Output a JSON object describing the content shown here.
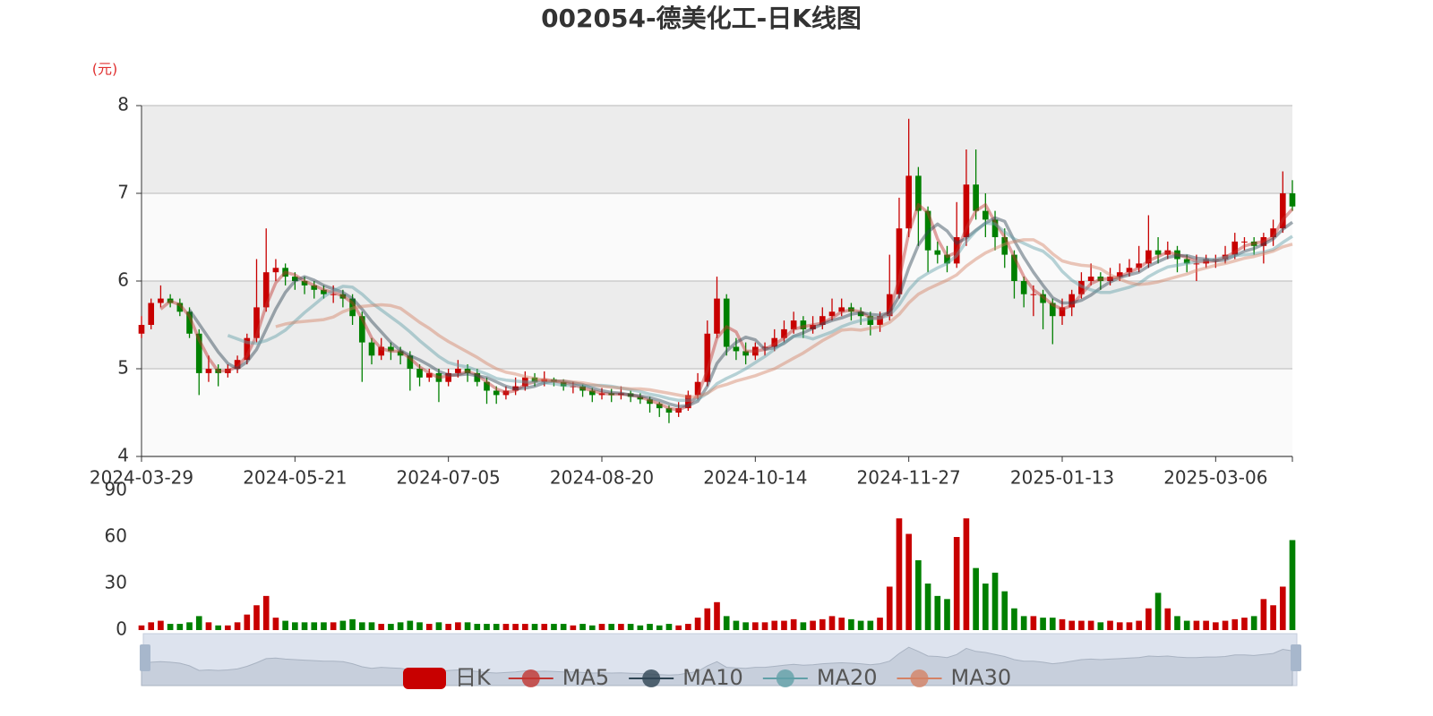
{
  "chart_data": [
    {
      "type": "candlestick",
      "title": "002054-德美化工-日K线图",
      "y_unit": "(元)",
      "candle_name": "日K",
      "up_color": "#c80000",
      "down_color": "#008000",
      "grid": true,
      "legend_position": "bottom",
      "categories": [
        "2024-03-29",
        null,
        null,
        null,
        null,
        null,
        null,
        null,
        null,
        null,
        null,
        null,
        null,
        null,
        null,
        null,
        "2024-05-21",
        null,
        null,
        null,
        null,
        null,
        null,
        null,
        null,
        null,
        null,
        null,
        null,
        null,
        null,
        null,
        "2024-07-05",
        null,
        null,
        null,
        null,
        null,
        null,
        null,
        null,
        null,
        null,
        null,
        null,
        null,
        null,
        null,
        "2024-08-20",
        null,
        null,
        null,
        null,
        null,
        null,
        null,
        null,
        null,
        null,
        null,
        null,
        null,
        null,
        null,
        "2024-10-14",
        null,
        null,
        null,
        null,
        null,
        null,
        null,
        null,
        null,
        null,
        null,
        null,
        null,
        null,
        null,
        "2024-11-27",
        null,
        null,
        null,
        null,
        null,
        null,
        null,
        null,
        null,
        null,
        null,
        null,
        null,
        null,
        null,
        "2025-01-13",
        null,
        null,
        null,
        null,
        null,
        null,
        null,
        null,
        null,
        null,
        null,
        null,
        null,
        null,
        null,
        "2025-03-06",
        null,
        null,
        null,
        null,
        null,
        null,
        null,
        null
      ],
      "open": [
        5.4,
        5.5,
        5.75,
        5.8,
        5.75,
        5.65,
        5.4,
        4.95,
        5.0,
        4.95,
        5.0,
        5.1,
        5.35,
        5.7,
        6.1,
        6.15,
        6.05,
        6.0,
        5.95,
        5.9,
        5.85,
        5.85,
        5.8,
        5.6,
        5.3,
        5.15,
        5.25,
        5.2,
        5.15,
        5.0,
        4.9,
        4.95,
        4.85,
        4.95,
        5.0,
        4.95,
        4.85,
        4.75,
        4.7,
        4.75,
        4.8,
        4.9,
        4.85,
        4.88,
        4.85,
        4.8,
        4.8,
        4.75,
        4.7,
        4.72,
        4.7,
        4.72,
        4.68,
        4.65,
        4.6,
        4.55,
        4.5,
        4.55,
        4.7,
        4.85,
        5.4,
        5.8,
        5.25,
        5.2,
        5.15,
        5.25,
        5.25,
        5.35,
        5.45,
        5.55,
        5.45,
        5.5,
        5.6,
        5.65,
        5.7,
        5.65,
        5.6,
        5.5,
        5.6,
        5.85,
        6.6,
        7.2,
        6.8,
        6.35,
        6.3,
        6.2,
        6.5,
        7.1,
        6.8,
        6.7,
        6.5,
        6.3,
        6.0,
        5.85,
        5.85,
        5.75,
        5.6,
        5.7,
        5.85,
        6.0,
        6.05,
        6.0,
        6.05,
        6.1,
        6.15,
        6.2,
        6.35,
        6.3,
        6.35,
        6.25,
        6.2,
        6.2,
        6.25,
        6.25,
        6.3,
        6.45,
        6.45,
        6.4,
        6.5,
        6.6,
        7.0
      ],
      "close": [
        5.5,
        5.75,
        5.8,
        5.75,
        5.65,
        5.4,
        4.95,
        5.0,
        4.95,
        5.0,
        5.1,
        5.35,
        5.7,
        6.1,
        6.15,
        6.05,
        6.0,
        5.95,
        5.9,
        5.85,
        5.85,
        5.8,
        5.6,
        5.3,
        5.15,
        5.25,
        5.2,
        5.15,
        5.0,
        4.9,
        4.95,
        4.85,
        4.95,
        5.0,
        4.95,
        4.85,
        4.75,
        4.7,
        4.75,
        4.8,
        4.9,
        4.85,
        4.88,
        4.85,
        4.8,
        4.8,
        4.75,
        4.7,
        4.72,
        4.7,
        4.72,
        4.68,
        4.65,
        4.6,
        4.55,
        4.5,
        4.55,
        4.7,
        4.85,
        5.4,
        5.8,
        5.25,
        5.2,
        5.15,
        5.25,
        5.25,
        5.35,
        5.45,
        5.55,
        5.45,
        5.5,
        5.6,
        5.65,
        5.7,
        5.65,
        5.6,
        5.5,
        5.6,
        5.85,
        6.6,
        7.2,
        6.8,
        6.35,
        6.3,
        6.2,
        6.5,
        7.1,
        6.8,
        6.7,
        6.5,
        6.3,
        6.0,
        5.85,
        5.85,
        5.75,
        5.6,
        5.7,
        5.85,
        6.0,
        6.05,
        6.0,
        6.05,
        6.1,
        6.15,
        6.2,
        6.35,
        6.3,
        6.35,
        6.25,
        6.2,
        6.2,
        6.25,
        6.25,
        6.3,
        6.45,
        6.45,
        6.4,
        6.5,
        6.6,
        7.0,
        6.85
      ],
      "low": [
        5.35,
        5.45,
        5.7,
        5.7,
        5.6,
        5.35,
        4.7,
        4.85,
        4.8,
        4.9,
        4.95,
        5.05,
        5.3,
        5.65,
        6.0,
        5.95,
        5.9,
        5.85,
        5.8,
        5.8,
        5.75,
        5.7,
        5.5,
        4.85,
        5.05,
        5.1,
        5.1,
        5.05,
        4.75,
        4.8,
        4.85,
        4.62,
        4.8,
        4.9,
        4.85,
        4.8,
        4.6,
        4.6,
        4.65,
        4.7,
        4.75,
        4.8,
        4.8,
        4.8,
        4.75,
        4.72,
        4.68,
        4.62,
        4.65,
        4.62,
        4.65,
        4.62,
        4.6,
        4.5,
        4.45,
        4.38,
        4.45,
        4.52,
        4.65,
        4.8,
        5.35,
        5.15,
        5.1,
        5.05,
        5.1,
        5.15,
        5.2,
        5.3,
        5.4,
        5.35,
        5.4,
        5.45,
        5.55,
        5.6,
        5.55,
        5.5,
        5.38,
        5.42,
        5.55,
        5.8,
        6.5,
        6.4,
        6.1,
        6.2,
        6.1,
        6.15,
        6.4,
        6.7,
        6.5,
        6.35,
        6.15,
        5.8,
        5.7,
        5.6,
        5.45,
        5.28,
        5.5,
        5.6,
        5.8,
        5.95,
        5.9,
        5.95,
        6.0,
        6.05,
        6.1,
        6.15,
        6.2,
        6.25,
        6.1,
        6.1,
        6.0,
        6.15,
        6.15,
        6.2,
        6.25,
        6.35,
        6.3,
        6.2,
        6.4,
        6.55,
        6.8
      ],
      "high": [
        5.6,
        5.8,
        5.95,
        5.85,
        5.8,
        5.7,
        5.45,
        5.15,
        5.05,
        5.05,
        5.15,
        5.4,
        6.25,
        6.6,
        6.25,
        6.2,
        6.1,
        6.05,
        6.0,
        5.95,
        5.95,
        5.9,
        5.85,
        5.65,
        5.35,
        5.35,
        5.3,
        5.25,
        5.2,
        5.05,
        5.0,
        5.0,
        5.0,
        5.1,
        5.05,
        5.0,
        4.9,
        4.8,
        4.8,
        4.9,
        4.97,
        4.95,
        4.97,
        4.9,
        4.88,
        4.85,
        4.82,
        4.78,
        4.78,
        4.77,
        4.8,
        4.75,
        4.72,
        4.68,
        4.62,
        4.58,
        4.62,
        4.75,
        4.95,
        5.55,
        6.05,
        5.85,
        5.35,
        5.3,
        5.3,
        5.3,
        5.45,
        5.55,
        5.65,
        5.6,
        5.6,
        5.7,
        5.8,
        5.8,
        5.75,
        5.7,
        5.65,
        5.65,
        6.3,
        6.95,
        7.85,
        7.3,
        6.85,
        6.45,
        6.4,
        6.9,
        7.5,
        7.5,
        7.0,
        6.8,
        6.6,
        6.35,
        6.05,
        5.95,
        5.9,
        5.8,
        5.8,
        5.9,
        6.1,
        6.2,
        6.1,
        6.15,
        6.2,
        6.25,
        6.4,
        6.75,
        6.5,
        6.45,
        6.4,
        6.3,
        6.3,
        6.3,
        6.3,
        6.4,
        6.55,
        6.5,
        6.5,
        6.55,
        6.7,
        7.25,
        7.15
      ],
      "series": [
        {
          "name": "MA5",
          "color": "#c23531",
          "values": [
            null,
            null,
            5.68,
            5.77,
            5.73,
            5.6,
            5.33,
            5.12,
            4.97,
            4.98,
            5.02,
            5.15,
            5.38,
            5.72,
            5.98,
            6.1,
            6.07,
            6.0,
            5.95,
            5.9,
            5.87,
            5.83,
            5.75,
            5.57,
            5.35,
            5.23,
            5.2,
            5.2,
            5.12,
            5.02,
            4.95,
            4.9,
            4.92,
            4.93,
            4.97,
            4.93,
            4.85,
            4.77,
            4.73,
            4.75,
            4.82,
            4.85,
            4.88,
            4.86,
            4.84,
            4.82,
            4.78,
            4.75,
            4.72,
            4.71,
            4.71,
            4.7,
            4.68,
            4.64,
            4.6,
            4.55,
            4.53,
            4.58,
            4.7,
            4.98,
            5.35,
            5.48,
            5.42,
            5.2,
            5.2,
            5.22,
            5.28,
            5.35,
            5.45,
            5.48,
            5.5,
            5.52,
            5.58,
            5.65,
            5.67,
            5.65,
            5.58,
            5.57,
            5.65,
            6.02,
            6.55,
            6.87,
            6.78,
            6.48,
            6.28,
            6.33,
            6.6,
            6.8,
            6.87,
            6.67,
            6.5,
            6.27,
            6.05,
            5.9,
            5.82,
            5.73,
            5.68,
            5.72,
            5.85,
            5.97,
            6.02,
            6.03,
            6.05,
            6.1,
            6.15,
            6.23,
            6.28,
            6.33,
            6.3,
            6.27,
            6.22,
            6.22,
            6.23,
            6.27,
            6.33,
            6.4,
            6.43,
            6.45,
            6.5,
            6.7,
            6.82
          ]
        },
        {
          "name": "MA10",
          "color": "#2f4554",
          "values": [
            null,
            null,
            null,
            null,
            null,
            5.67,
            5.51,
            5.35,
            5.19,
            5.06,
            5.0,
            5.08,
            5.22,
            5.45,
            5.68,
            5.87,
            6.0,
            6.05,
            6.01,
            5.95,
            5.91,
            5.87,
            5.8,
            5.68,
            5.54,
            5.42,
            5.3,
            5.21,
            5.15,
            5.1,
            5.04,
            4.97,
            4.93,
            4.93,
            4.94,
            4.92,
            4.9,
            4.85,
            4.8,
            4.77,
            4.78,
            4.8,
            4.84,
            4.86,
            4.86,
            4.84,
            4.82,
            4.78,
            4.75,
            4.73,
            4.72,
            4.7,
            4.69,
            4.67,
            4.64,
            4.6,
            4.57,
            4.58,
            4.63,
            4.8,
            5.06,
            5.2,
            5.3,
            5.36,
            5.33,
            5.22,
            5.24,
            5.29,
            5.37,
            5.41,
            5.46,
            5.51,
            5.55,
            5.58,
            5.62,
            5.64,
            5.62,
            5.61,
            5.64,
            5.83,
            6.15,
            6.41,
            6.56,
            6.65,
            6.57,
            6.43,
            6.49,
            6.58,
            6.66,
            6.72,
            6.68,
            6.46,
            6.27,
            6.1,
            5.95,
            5.81,
            5.75,
            5.75,
            5.78,
            5.84,
            5.92,
            5.99,
            6.04,
            6.07,
            6.1,
            6.17,
            6.22,
            6.27,
            6.29,
            6.29,
            6.26,
            6.25,
            6.23,
            6.24,
            6.29,
            6.34,
            6.37,
            6.42,
            6.48,
            6.59,
            6.67
          ]
        },
        {
          "name": "MA20",
          "color": "#61a0a8",
          "values": [
            null,
            null,
            null,
            null,
            null,
            null,
            null,
            null,
            null,
            5.38,
            5.34,
            5.3,
            5.29,
            5.32,
            5.37,
            5.44,
            5.54,
            5.64,
            5.73,
            5.82,
            5.89,
            5.94,
            5.93,
            5.85,
            5.75,
            5.67,
            5.59,
            5.51,
            5.42,
            5.32,
            5.23,
            5.14,
            5.07,
            5.04,
            5.02,
            4.98,
            4.94,
            4.89,
            4.87,
            4.86,
            4.85,
            4.85,
            4.84,
            4.83,
            4.81,
            4.81,
            4.81,
            4.81,
            4.81,
            4.8,
            4.78,
            4.76,
            4.74,
            4.71,
            4.69,
            4.66,
            4.64,
            4.64,
            4.65,
            4.72,
            4.83,
            4.89,
            4.94,
            5.0,
            5.07,
            5.14,
            5.22,
            5.3,
            5.37,
            5.37,
            5.34,
            5.38,
            5.42,
            5.48,
            5.52,
            5.55,
            5.57,
            5.58,
            5.61,
            5.73,
            5.9,
            6.02,
            6.09,
            6.15,
            6.2,
            6.29,
            6.45,
            6.57,
            6.66,
            6.65,
            6.56,
            6.48,
            6.43,
            6.38,
            6.34,
            6.25,
            6.11,
            6.01,
            5.94,
            5.9,
            5.87,
            5.87,
            5.9,
            5.93,
            5.97,
            6.05,
            6.11,
            6.16,
            6.18,
            6.2,
            6.22,
            6.24,
            6.25,
            6.27,
            6.29,
            6.3,
            6.31,
            6.33,
            6.36,
            6.44,
            6.51
          ]
        },
        {
          "name": "MA30",
          "color": "#d48265",
          "values": [
            null,
            null,
            null,
            null,
            null,
            null,
            null,
            null,
            null,
            null,
            null,
            null,
            null,
            null,
            5.48,
            5.51,
            5.53,
            5.54,
            5.55,
            5.56,
            5.59,
            5.65,
            5.69,
            5.71,
            5.72,
            5.73,
            5.72,
            5.69,
            5.61,
            5.53,
            5.46,
            5.38,
            5.31,
            5.25,
            5.19,
            5.13,
            5.06,
            5.0,
            4.96,
            4.94,
            4.91,
            4.89,
            4.87,
            4.86,
            4.86,
            4.85,
            4.84,
            4.82,
            4.8,
            4.79,
            4.78,
            4.77,
            4.77,
            4.76,
            4.74,
            4.72,
            4.7,
            4.68,
            4.68,
            4.72,
            4.79,
            4.82,
            4.86,
            4.89,
            4.92,
            4.96,
            5.0,
            5.06,
            5.12,
            5.18,
            5.25,
            5.32,
            5.38,
            5.44,
            5.45,
            5.44,
            5.46,
            5.48,
            5.53,
            5.62,
            5.75,
            5.85,
            5.91,
            5.96,
            6.01,
            6.07,
            6.17,
            6.25,
            6.32,
            6.37,
            6.42,
            6.45,
            6.47,
            6.47,
            6.41,
            6.31,
            6.23,
            6.2,
            6.18,
            6.17,
            6.14,
            6.07,
            6.02,
            5.98,
            5.96,
            5.97,
            5.99,
            6.02,
            6.05,
            6.08,
            6.12,
            6.15,
            6.18,
            6.2,
            6.23,
            6.26,
            6.28,
            6.31,
            6.34,
            6.39,
            6.42
          ]
        }
      ],
      "ylim": [
        4,
        8
      ],
      "yticks": [
        4,
        5,
        6,
        7,
        8
      ]
    },
    {
      "type": "bar",
      "values": [
        3,
        5,
        6,
        4,
        4,
        5,
        9,
        5,
        3,
        3,
        5,
        10,
        16,
        22,
        8,
        6,
        5,
        5,
        5,
        5,
        5,
        6,
        7,
        5,
        5,
        4,
        4,
        5,
        6,
        5,
        4,
        5,
        4,
        5,
        5,
        4,
        4,
        4,
        4,
        4,
        4,
        4,
        4,
        4,
        4,
        3,
        4,
        3,
        4,
        4,
        4,
        4,
        3,
        4,
        3,
        4,
        3,
        4,
        8,
        14,
        18,
        9,
        6,
        5,
        5,
        5,
        6,
        6,
        7,
        5,
        6,
        7,
        9,
        8,
        7,
        6,
        6,
        8,
        28,
        72,
        62,
        45,
        30,
        22,
        20,
        60,
        72,
        40,
        30,
        37,
        25,
        14,
        9,
        9,
        8,
        8,
        7,
        6,
        6,
        6,
        5,
        6,
        5,
        5,
        6,
        14,
        24,
        14,
        9,
        6,
        6,
        6,
        5,
        6,
        7,
        8,
        9,
        20,
        16,
        28,
        58
      ],
      "ylim": [
        0,
        90
      ],
      "yticks": [
        0,
        30,
        60,
        90
      ]
    }
  ]
}
